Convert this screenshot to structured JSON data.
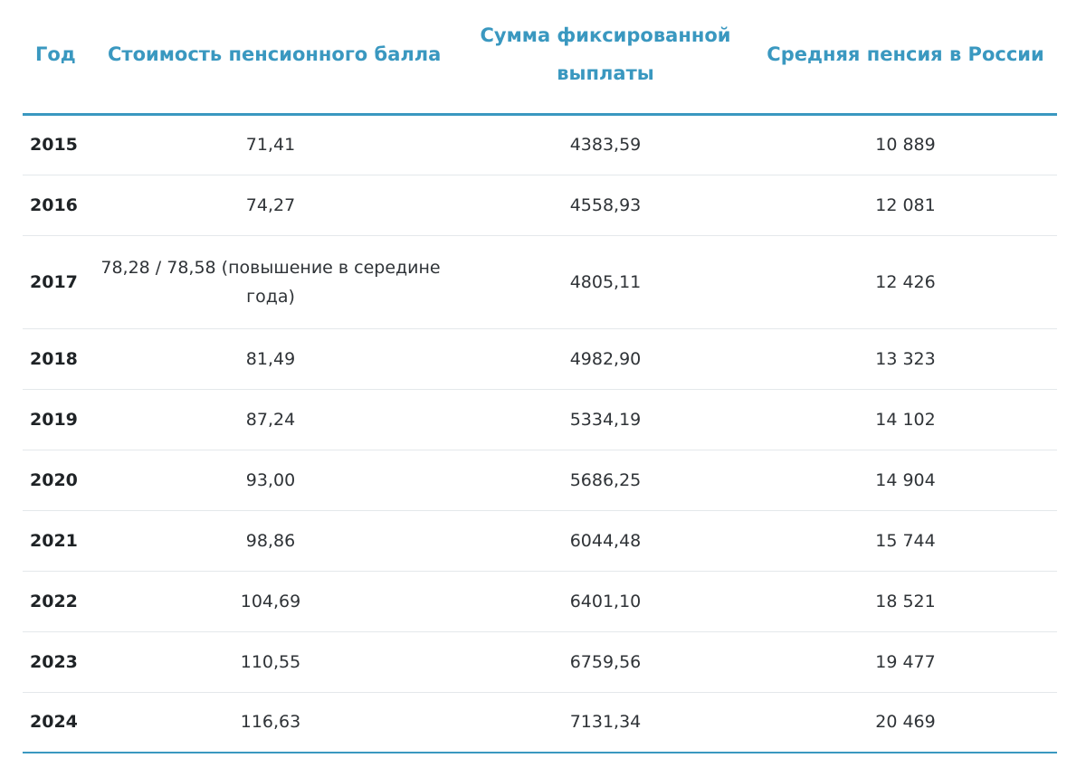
{
  "table": {
    "headers": {
      "year": "Год",
      "point_cost": "Стоимость пенсионного балла",
      "fixed_payment": "Сумма фиксированной выплаты",
      "avg_pension": "Средняя пенсия в России"
    },
    "rows": [
      {
        "year": "2015",
        "point_cost": "71,41",
        "fixed_payment": "4383,59",
        "avg_pension": "10 889"
      },
      {
        "year": "2016",
        "point_cost": "74,27",
        "fixed_payment": "4558,93",
        "avg_pension": "12 081"
      },
      {
        "year": "2017",
        "point_cost": "78,28 / 78,58 (повышение в середине года)",
        "fixed_payment": "4805,11",
        "avg_pension": "12 426"
      },
      {
        "year": "2018",
        "point_cost": "81,49",
        "fixed_payment": "4982,90",
        "avg_pension": "13 323"
      },
      {
        "year": "2019",
        "point_cost": "87,24",
        "fixed_payment": "5334,19",
        "avg_pension": "14 102"
      },
      {
        "year": "2020",
        "point_cost": "93,00",
        "fixed_payment": "5686,25",
        "avg_pension": "14 904"
      },
      {
        "year": "2021",
        "point_cost": "98,86",
        "fixed_payment": "6044,48",
        "avg_pension": "15 744"
      },
      {
        "year": "2022",
        "point_cost": "104,69",
        "fixed_payment": "6401,10",
        "avg_pension": "18 521"
      },
      {
        "year": "2023",
        "point_cost": "110,55",
        "fixed_payment": "6759,56",
        "avg_pension": "19 477"
      },
      {
        "year": "2024",
        "point_cost": "116,63",
        "fixed_payment": "7131,34",
        "avg_pension": "20 469"
      }
    ]
  },
  "colors": {
    "header_accent": "#3a98c0",
    "row_divider": "#e4e8eb",
    "text": "#2f3337"
  }
}
